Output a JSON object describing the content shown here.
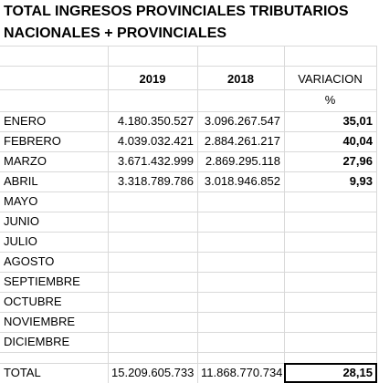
{
  "title": [
    "TOTAL INGRESOS PROVINCIALES TRIBUTARIOS",
    "NACIONALES + PROVINCIALES"
  ],
  "header": [
    "2019",
    "2018",
    "VARIACION"
  ],
  "unit": "%",
  "rows": [
    [
      "ENERO",
      "4.180.350.527",
      "3.096.267.547",
      "35,01"
    ],
    [
      "FEBRERO",
      "4.039.032.421",
      "2.884.261.217",
      "40,04"
    ],
    [
      "MARZO",
      "3.671.432.999",
      "2.869.295.118",
      "27,96"
    ],
    [
      "ABRIL",
      "3.318.789.786",
      "3.018.946.852",
      "9,93"
    ],
    [
      "MAYO"
    ],
    [
      "JUNIO"
    ],
    [
      "JULIO"
    ],
    [
      "AGOSTO"
    ],
    [
      "SEPTIEMBRE"
    ],
    [
      "OCTUBRE"
    ],
    [
      "NOVIEMBRE"
    ],
    [
      "DICIEMBRE"
    ]
  ],
  "total": [
    "TOTAL",
    "15.209.605.733",
    "11.868.770.734",
    "28,15"
  ]
}
